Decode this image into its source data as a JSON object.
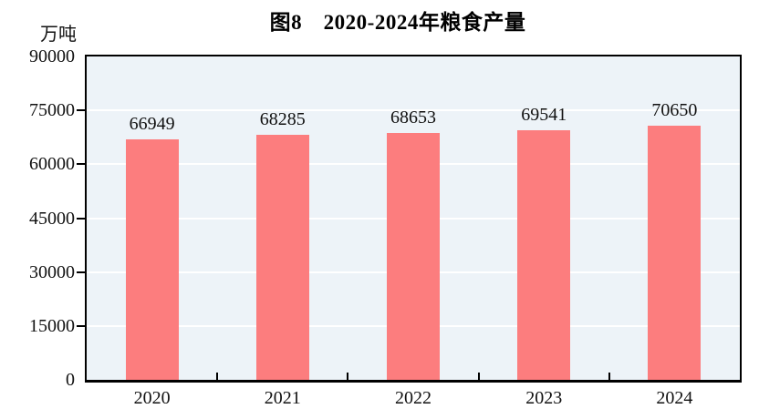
{
  "figure": {
    "title": "图8　2020-2024年粮食产量",
    "unit_label": "万吨"
  },
  "chart_data": {
    "type": "bar",
    "title": "图8　2020-2024年粮食产量",
    "unit_label": "万吨",
    "xlabel": "",
    "ylabel": "万吨",
    "categories": [
      "2020",
      "2021",
      "2022",
      "2023",
      "2024"
    ],
    "values": [
      66949,
      68285,
      68653,
      69541,
      70650
    ],
    "data_labels": [
      "66949",
      "68285",
      "68653",
      "69541",
      "70650"
    ],
    "ylim": [
      0,
      90000
    ],
    "yticks": [
      0,
      15000,
      30000,
      45000,
      60000,
      75000,
      90000
    ],
    "grid": true,
    "legend_position": "none",
    "colors": {
      "bar": "#fc7d7e",
      "plot_background": "#edf3f8",
      "gridline": "#ffffff",
      "axis": "#000000",
      "text": "#111111"
    }
  }
}
